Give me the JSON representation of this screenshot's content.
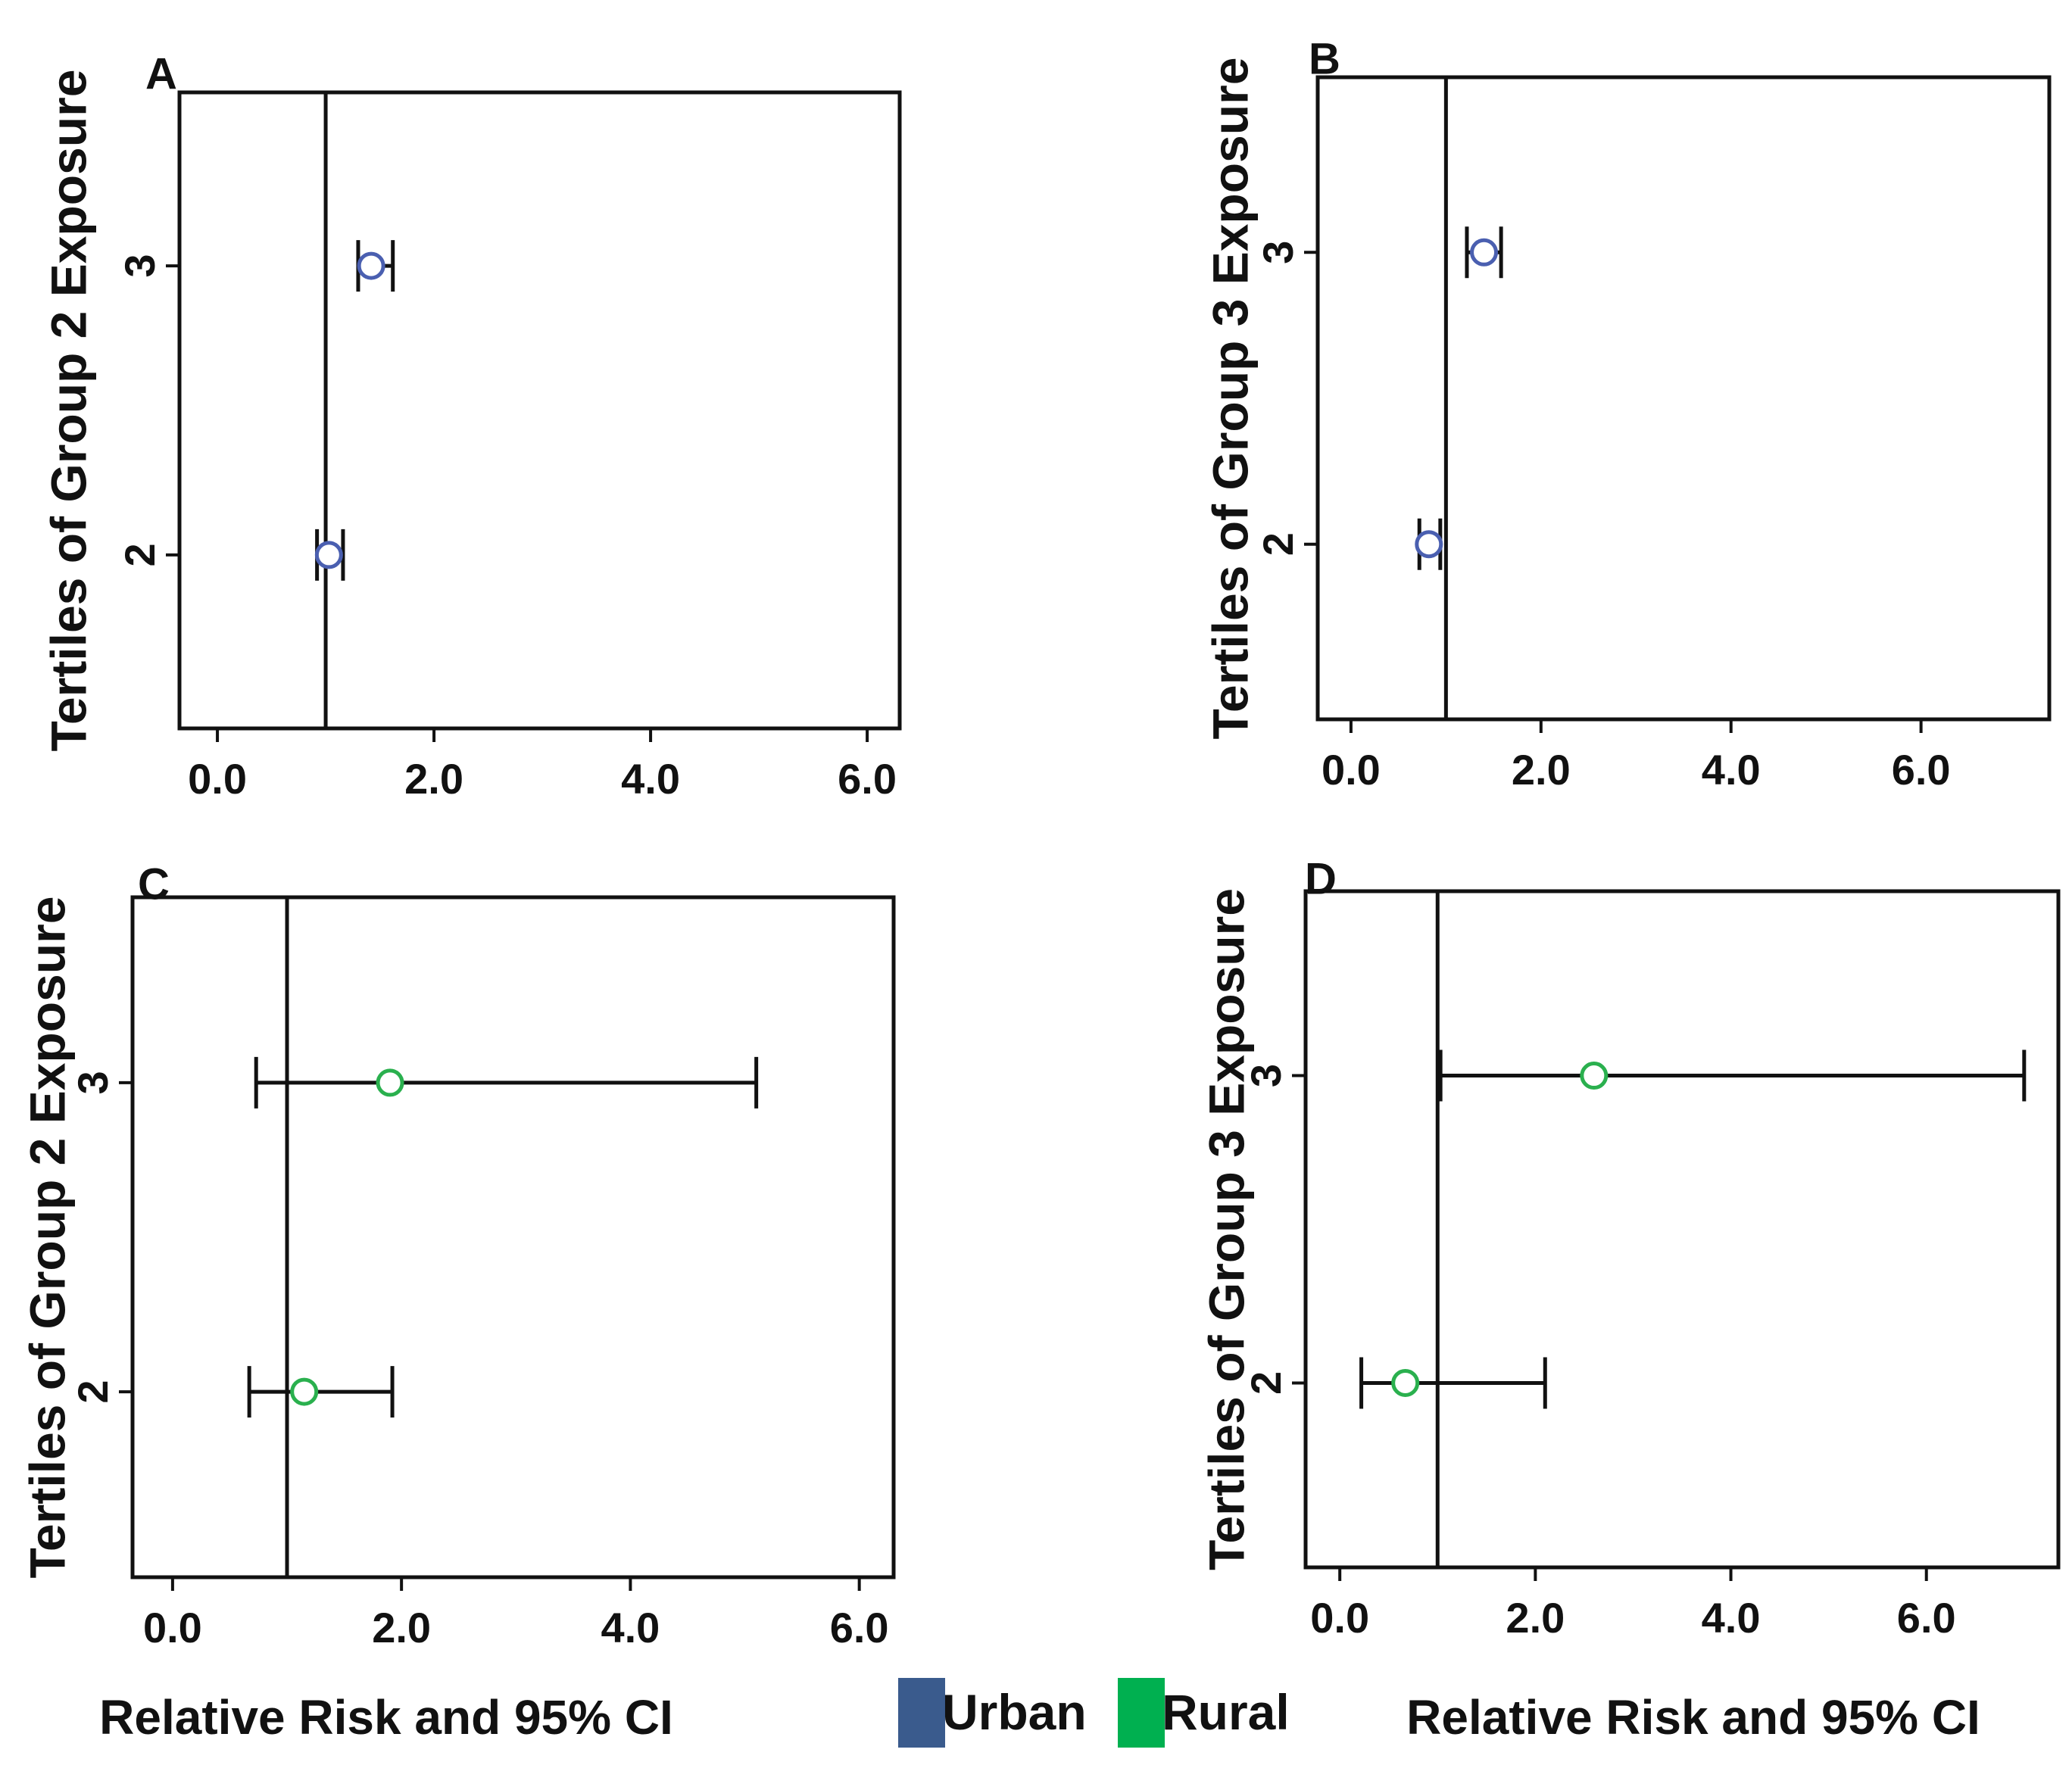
{
  "chart_data": [
    {
      "type": "forest",
      "panel": "A",
      "ylabel": "Tertiles of Group 2 Exposure",
      "xlabel": "",
      "xticks": [
        "0.0",
        "2.0",
        "4.0",
        "6.0"
      ],
      "xlim": [
        -0.35,
        6.3
      ],
      "ylim": [
        1.4,
        3.6
      ],
      "yticks": [
        "2",
        "3"
      ],
      "reference_line": 1.0,
      "series": "Urban",
      "points": [
        {
          "tertile": 3,
          "rr": 1.42,
          "lower": 1.3,
          "upper": 1.62
        },
        {
          "tertile": 2,
          "rr": 1.03,
          "lower": 0.92,
          "upper": 1.16
        }
      ]
    },
    {
      "type": "forest",
      "panel": "B",
      "ylabel": "Tertiles of Group 3 Exposure",
      "xlabel": "",
      "xticks": [
        "0.0",
        "2.0",
        "4.0",
        "6.0"
      ],
      "xlim": [
        -0.35,
        7.35
      ],
      "ylim": [
        1.4,
        3.6
      ],
      "yticks": [
        "2",
        "3"
      ],
      "reference_line": 1.0,
      "series": "Urban",
      "points": [
        {
          "tertile": 3,
          "rr": 1.4,
          "lower": 1.22,
          "upper": 1.58
        },
        {
          "tertile": 2,
          "rr": 0.82,
          "lower": 0.72,
          "upper": 0.94
        }
      ]
    },
    {
      "type": "forest",
      "panel": "C",
      "ylabel": "Tertiles of Group 2 Exposure",
      "xlabel": "Relative Risk and 95% CI",
      "xticks": [
        "0.0",
        "2.0",
        "4.0",
        "6.0"
      ],
      "xlim": [
        -0.35,
        6.3
      ],
      "ylim": [
        1.4,
        3.6
      ],
      "yticks": [
        "2",
        "3"
      ],
      "reference_line": 1.0,
      "series": "Rural",
      "points": [
        {
          "tertile": 3,
          "rr": 1.9,
          "lower": 0.73,
          "upper": 5.1
        },
        {
          "tertile": 2,
          "rr": 1.15,
          "lower": 0.67,
          "upper": 1.92
        }
      ]
    },
    {
      "type": "forest",
      "panel": "D",
      "ylabel": "Tertiles of Group 3 Exposure",
      "xlabel": "Relative Risk and 95% CI",
      "xticks": [
        "0.0",
        "2.0",
        "4.0",
        "6.0"
      ],
      "xlim": [
        -0.35,
        7.35
      ],
      "ylim": [
        1.4,
        3.6
      ],
      "yticks": [
        "2",
        "3"
      ],
      "reference_line": 1.0,
      "series": "Rural",
      "points": [
        {
          "tertile": 3,
          "rr": 2.6,
          "lower": 1.03,
          "upper": 7.0
        },
        {
          "tertile": 2,
          "rr": 0.67,
          "lower": 0.22,
          "upper": 2.1
        }
      ]
    }
  ],
  "legend": [
    {
      "label": "Urban",
      "color": "#3a5b8d",
      "marker_color": "#4a5fb0"
    },
    {
      "label": "Rural",
      "color": "#00b050",
      "marker_color": "#2ab04e"
    }
  ],
  "colors": {
    "axis": "#111111",
    "background": "#ffffff"
  }
}
